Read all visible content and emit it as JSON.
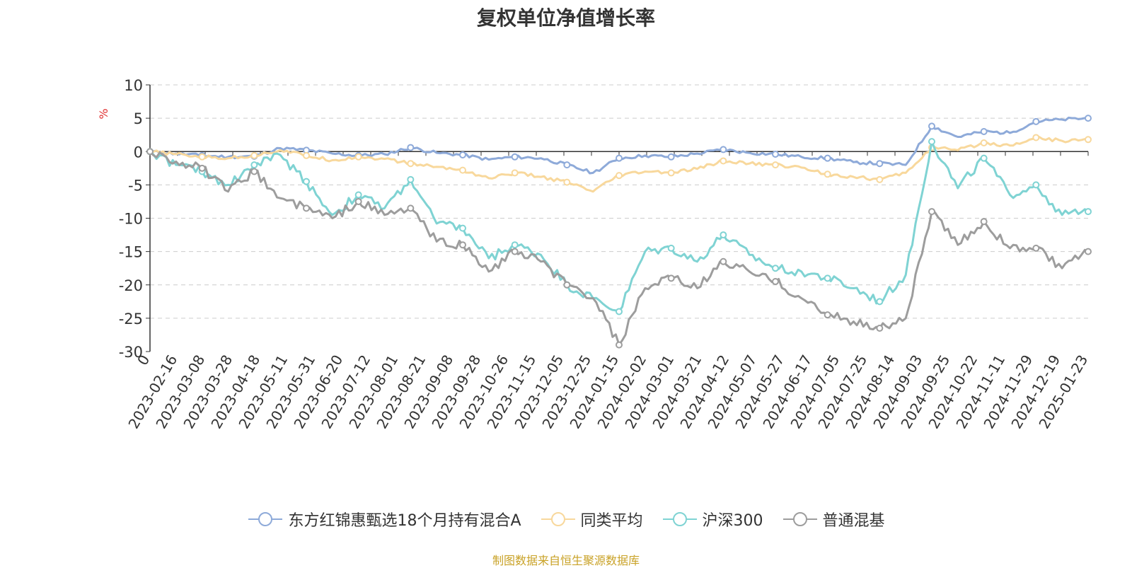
{
  "chart_data": {
    "type": "line",
    "title": "复权单位净值增长率",
    "ylabel": "%",
    "ylim": [
      -30,
      10
    ],
    "yticks": [
      10,
      5,
      0,
      -5,
      -10,
      -15,
      -20,
      -25,
      -30
    ],
    "x_tick_labels": [
      "0",
      "2023-02-16",
      "2023-03-08",
      "2023-03-28",
      "2023-04-18",
      "2023-05-11",
      "2023-05-31",
      "2023-06-20",
      "2023-07-12",
      "2023-08-01",
      "2023-08-21",
      "2023-09-08",
      "2023-09-28",
      "2023-10-26",
      "2023-11-15",
      "2023-12-05",
      "2023-12-25",
      "2024-01-15",
      "2024-02-02",
      "2024-03-01",
      "2024-03-21",
      "2024-04-12",
      "2024-05-07",
      "2024-05-27",
      "2024-06-17",
      "2024-07-05",
      "2024-07-25",
      "2024-08-14",
      "2024-09-03",
      "2024-09-25",
      "2024-10-22",
      "2024-11-11",
      "2024-11-29",
      "2024-12-19",
      "2025-01-23"
    ],
    "grid": true,
    "legend_position": "bottom",
    "series": [
      {
        "name": "东方红锦惠甄选18个月持有混合A",
        "color": "#8eaad9",
        "values": [
          0,
          -0.3,
          -0.6,
          -0.8,
          -0.7,
          0.5,
          0.2,
          -0.3,
          -0.6,
          -0.4,
          0.6,
          -0.2,
          -0.5,
          -1.2,
          -0.8,
          -1.0,
          -2.0,
          -3.2,
          -1.0,
          -0.6,
          -0.8,
          -0.3,
          0.3,
          -0.2,
          -0.4,
          -0.8,
          -1.0,
          -1.6,
          -1.8,
          -2.0,
          3.8,
          2.2,
          3.0,
          2.8,
          4.5,
          4.8,
          5.0
        ]
      },
      {
        "name": "同类平均",
        "color": "#f8d89c",
        "values": [
          0,
          -0.4,
          -0.8,
          -1.0,
          -0.6,
          0.2,
          -0.6,
          -1.3,
          -0.8,
          -1.1,
          -1.8,
          -2.3,
          -2.8,
          -4.0,
          -3.2,
          -3.8,
          -4.6,
          -6.0,
          -3.6,
          -3.0,
          -3.2,
          -2.6,
          -1.4,
          -1.8,
          -2.0,
          -2.4,
          -3.4,
          -3.8,
          -4.2,
          -3.2,
          0.6,
          0.2,
          1.3,
          0.9,
          2.1,
          1.6,
          1.8
        ]
      },
      {
        "name": "沪深300",
        "color": "#7fd3d3",
        "values": [
          0,
          -2.0,
          -3.0,
          -5.0,
          -2.0,
          -0.5,
          -4.5,
          -9.5,
          -6.5,
          -8.5,
          -4.2,
          -10.8,
          -11.5,
          -16.0,
          -14.0,
          -15.5,
          -20.0,
          -22.0,
          -24.0,
          -15.0,
          -14.5,
          -16.5,
          -12.5,
          -15.5,
          -17.5,
          -18.0,
          -19.0,
          -20.5,
          -22.5,
          -18.5,
          1.5,
          -5.5,
          -1.0,
          -6.5,
          -5.0,
          -9.5,
          -9.0
        ]
      },
      {
        "name": "普通混基",
        "color": "#9d9d9d",
        "values": [
          0,
          -1.5,
          -2.5,
          -6.0,
          -3.0,
          -7.0,
          -8.5,
          -10.0,
          -7.5,
          -9.5,
          -8.5,
          -13.5,
          -14.0,
          -18.0,
          -15.0,
          -16.5,
          -20.0,
          -22.0,
          -29.0,
          -20.5,
          -19.0,
          -20.5,
          -16.5,
          -18.0,
          -19.5,
          -22.0,
          -24.5,
          -25.5,
          -26.5,
          -25.0,
          -9.0,
          -14.0,
          -10.5,
          -14.5,
          -14.5,
          -17.5,
          -15.0
        ]
      }
    ]
  },
  "source_note": "制图数据来自恒生聚源数据库"
}
